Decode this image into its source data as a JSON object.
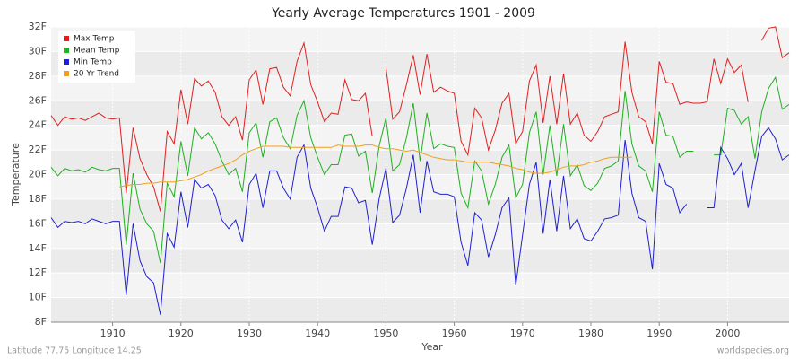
{
  "chart_data": {
    "type": "line",
    "title": "Yearly Average Temperatures 1901 - 2009",
    "xlabel": "Year",
    "ylabel": "Temperature",
    "note": "Latitude 77.75 Longitude 14.25",
    "source": "worldspecies.org",
    "legend": "top-left",
    "grid": true,
    "xlim": [
      1901,
      2009
    ],
    "xticks": [
      1910,
      1920,
      1930,
      1940,
      1950,
      1960,
      1970,
      1980,
      1990,
      2000
    ],
    "ylim": [
      8,
      32
    ],
    "yticks": [
      {
        "value": 8,
        "label": "8F"
      },
      {
        "value": 10,
        "label": "10F"
      },
      {
        "value": 12,
        "label": "12F"
      },
      {
        "value": 14,
        "label": "14F"
      },
      {
        "value": 16,
        "label": "16F"
      },
      {
        "value": 18,
        "label": "18F"
      },
      {
        "value": 20,
        "label": "20F"
      },
      {
        "value": 22,
        "label": "22F"
      },
      {
        "value": 24,
        "label": "24F"
      },
      {
        "value": 26,
        "label": "26F"
      },
      {
        "value": 28,
        "label": "28F"
      },
      {
        "value": 30,
        "label": "30F"
      },
      {
        "value": 32,
        "label": "32F"
      }
    ],
    "x": [
      1901,
      1902,
      1903,
      1904,
      1905,
      1906,
      1907,
      1908,
      1909,
      1910,
      1911,
      1912,
      1913,
      1914,
      1915,
      1916,
      1917,
      1918,
      1919,
      1920,
      1921,
      1922,
      1923,
      1924,
      1925,
      1926,
      1927,
      1928,
      1929,
      1930,
      1931,
      1932,
      1933,
      1934,
      1935,
      1936,
      1937,
      1938,
      1939,
      1940,
      1941,
      1942,
      1943,
      1944,
      1945,
      1946,
      1947,
      1948,
      1949,
      1950,
      1951,
      1952,
      1953,
      1954,
      1955,
      1956,
      1957,
      1958,
      1959,
      1960,
      1961,
      1962,
      1963,
      1964,
      1965,
      1966,
      1967,
      1968,
      1969,
      1970,
      1971,
      1972,
      1973,
      1974,
      1975,
      1976,
      1977,
      1978,
      1979,
      1980,
      1981,
      1982,
      1983,
      1984,
      1985,
      1986,
      1987,
      1988,
      1989,
      1990,
      1991,
      1992,
      1993,
      1994,
      1995,
      1996,
      1997,
      1998,
      1999,
      2000,
      2001,
      2002,
      2003,
      2004,
      2005,
      2006,
      2007,
      2008,
      2009
    ],
    "series": [
      {
        "name": "Max Temp",
        "color": "#e02020",
        "values": [
          24.8,
          24.0,
          24.7,
          24.5,
          24.6,
          24.4,
          24.7,
          25.0,
          24.6,
          24.5,
          24.6,
          18.5,
          23.8,
          21.3,
          20.0,
          19.0,
          17.0,
          23.5,
          22.5,
          26.9,
          24.1,
          27.8,
          27.2,
          27.6,
          26.7,
          24.7,
          24.0,
          24.7,
          22.8,
          27.7,
          28.5,
          25.7,
          28.6,
          28.7,
          27.1,
          26.4,
          29.2,
          30.7,
          27.3,
          25.9,
          24.3,
          25.0,
          24.9,
          27.7,
          26.1,
          26.0,
          26.6,
          23.1,
          null,
          28.7,
          24.5,
          25.1,
          27.3,
          29.7,
          26.5,
          29.8,
          26.7,
          27.1,
          26.8,
          26.6,
          22.7,
          21.6,
          25.4,
          24.6,
          22.0,
          23.6,
          25.8,
          26.6,
          22.5,
          23.5,
          27.6,
          28.9,
          24.2,
          28.0,
          24.1,
          28.2,
          24.1,
          25.0,
          23.2,
          22.7,
          23.5,
          24.7,
          24.9,
          25.1,
          30.8,
          26.7,
          24.7,
          24.3,
          22.5,
          29.2,
          27.5,
          27.4,
          25.7,
          25.9,
          25.8,
          25.8,
          25.9,
          29.4,
          27.4,
          29.4,
          28.3,
          28.9,
          25.9,
          null,
          30.9,
          31.9,
          32.0,
          29.5,
          29.9
        ]
      },
      {
        "name": "Mean Temp",
        "color": "#20b020",
        "values": [
          20.6,
          19.9,
          20.5,
          20.3,
          20.4,
          20.2,
          20.6,
          20.4,
          20.3,
          20.5,
          20.5,
          14.3,
          20.1,
          17.2,
          16.0,
          15.4,
          12.8,
          19.3,
          18.2,
          22.7,
          19.9,
          23.8,
          22.9,
          23.4,
          22.5,
          21.1,
          20.0,
          20.5,
          18.6,
          23.4,
          24.2,
          21.4,
          24.3,
          24.6,
          23.0,
          22.1,
          24.8,
          26.0,
          23.0,
          21.4,
          20.0,
          20.8,
          20.8,
          23.2,
          23.3,
          21.5,
          21.9,
          18.5,
          22.3,
          24.6,
          20.3,
          20.8,
          23.0,
          25.8,
          21.1,
          25.0,
          22.1,
          22.5,
          22.3,
          22.2,
          18.5,
          17.3,
          21.1,
          20.3,
          17.6,
          19.2,
          21.4,
          22.4,
          18.1,
          19.2,
          23.4,
          25.1,
          20.0,
          24.0,
          19.9,
          24.1,
          19.9,
          20.8,
          19.1,
          18.7,
          19.3,
          20.5,
          20.7,
          21.1,
          26.8,
          22.5,
          20.7,
          20.3,
          18.6,
          25.1,
          23.2,
          23.1,
          21.4,
          21.9,
          21.9,
          null,
          null,
          21.6,
          21.6,
          25.4,
          25.2,
          24.1,
          24.7,
          21.3,
          25.1,
          27.0,
          27.9,
          25.3,
          25.7
        ]
      },
      {
        "name": "Min Temp",
        "color": "#2020d0",
        "values": [
          16.5,
          15.7,
          16.2,
          16.1,
          16.2,
          16.0,
          16.4,
          16.2,
          16.0,
          16.2,
          16.2,
          10.2,
          16.0,
          13.0,
          11.7,
          11.2,
          8.6,
          15.2,
          14.1,
          18.6,
          15.7,
          19.6,
          18.9,
          19.2,
          18.3,
          16.3,
          15.6,
          16.3,
          14.5,
          19.2,
          20.1,
          17.3,
          20.3,
          20.3,
          18.9,
          18.0,
          21.4,
          22.4,
          18.9,
          17.3,
          15.4,
          16.6,
          16.6,
          19.0,
          18.9,
          17.7,
          17.9,
          14.3,
          18.0,
          20.5,
          16.1,
          16.7,
          18.9,
          21.6,
          16.9,
          21.1,
          18.6,
          18.4,
          18.4,
          18.2,
          14.5,
          12.6,
          16.9,
          16.3,
          13.3,
          15.1,
          17.3,
          18.1,
          11.0,
          15.1,
          19.2,
          21.0,
          15.2,
          19.6,
          15.4,
          19.9,
          15.6,
          16.4,
          14.8,
          14.6,
          15.4,
          16.4,
          16.5,
          16.7,
          22.8,
          18.5,
          16.5,
          16.2,
          12.3,
          20.9,
          19.2,
          18.9,
          16.9,
          17.6,
          null,
          null,
          17.3,
          17.3,
          22.2,
          21.3,
          20.0,
          20.9,
          17.3,
          20.3,
          23.1,
          23.8,
          22.9,
          21.2,
          21.6
        ]
      },
      {
        "name": "20 Yr Trend",
        "color": "#f0a020",
        "values": [
          null,
          null,
          null,
          null,
          null,
          null,
          null,
          null,
          null,
          null,
          19.0,
          19.1,
          19.2,
          19.2,
          19.3,
          19.3,
          19.4,
          19.4,
          19.4,
          19.5,
          19.6,
          19.8,
          20.0,
          20.3,
          20.5,
          20.7,
          20.9,
          21.2,
          21.6,
          21.9,
          22.1,
          22.3,
          22.3,
          22.3,
          22.3,
          22.2,
          22.2,
          22.2,
          22.2,
          22.2,
          22.2,
          22.2,
          22.4,
          22.3,
          22.3,
          22.3,
          22.4,
          22.4,
          22.2,
          22.1,
          22.1,
          22.0,
          21.9,
          22.0,
          21.8,
          21.6,
          21.4,
          21.3,
          21.2,
          21.2,
          21.1,
          21.0,
          21.0,
          21.0,
          21.0,
          20.9,
          20.8,
          20.7,
          20.5,
          20.4,
          20.2,
          20.1,
          20.1,
          20.2,
          20.4,
          20.6,
          20.7,
          20.7,
          20.8,
          21.0,
          21.1,
          21.3,
          21.4,
          21.4,
          21.4,
          21.4,
          null,
          null,
          null,
          null,
          null,
          null,
          null,
          null,
          null,
          null,
          null,
          null,
          null,
          null,
          null,
          null,
          null,
          null,
          null,
          null,
          null,
          null,
          null
        ]
      }
    ]
  }
}
